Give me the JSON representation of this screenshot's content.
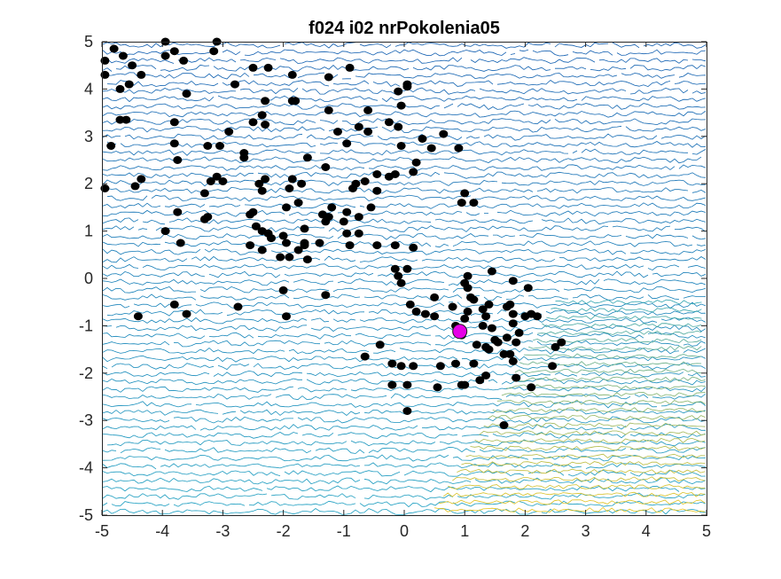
{
  "chart_data": {
    "type": "scatter",
    "title": "f024 i02 nrPokolenia05",
    "xlabel": "",
    "ylabel": "",
    "xlim": [
      -5,
      5
    ],
    "ylim": [
      -5,
      5
    ],
    "x_ticks": [
      -5,
      -4,
      -3,
      -2,
      -1,
      0,
      1,
      2,
      3,
      4,
      5
    ],
    "y_ticks": [
      -5,
      -4,
      -3,
      -2,
      -1,
      0,
      1,
      2,
      3,
      4,
      5
    ],
    "x_tick_labels": [
      "-5",
      "-4",
      "-3",
      "-2",
      "-1",
      "0",
      "1",
      "2",
      "3",
      "4",
      "5"
    ],
    "y_tick_labels": [
      "-5",
      "-4",
      "-3",
      "-2",
      "-1",
      "0",
      "1",
      "2",
      "3",
      "4",
      "5"
    ],
    "grid": false,
    "background": "contour lines of objective function (parula colormap, low=blue, high=yellow toward bottom-right)",
    "colors": {
      "contour_low": "#0a3fa8",
      "contour_mid": "#1a9fc0",
      "contour_high": "#e6c21a",
      "population_marker": "#000000",
      "best_marker": "#e600e6"
    },
    "series": [
      {
        "marker": "filled-circle",
        "color": "#000000",
        "points": [
          [
            -4.95,
            4.6
          ],
          [
            -4.95,
            4.3
          ],
          [
            -4.8,
            4.85
          ],
          [
            -4.65,
            4.7
          ],
          [
            -4.5,
            4.5
          ],
          [
            -4.35,
            4.3
          ],
          [
            -4.55,
            4.1
          ],
          [
            -4.7,
            4.0
          ],
          [
            -4.6,
            3.35
          ],
          [
            -4.7,
            3.35
          ],
          [
            -4.85,
            2.8
          ],
          [
            -4.95,
            1.9
          ],
          [
            -4.45,
            1.95
          ],
          [
            -4.35,
            2.1
          ],
          [
            -3.95,
            5.0
          ],
          [
            -3.95,
            4.7
          ],
          [
            -3.8,
            4.8
          ],
          [
            -3.65,
            4.6
          ],
          [
            -3.6,
            3.9
          ],
          [
            -3.8,
            3.3
          ],
          [
            -3.8,
            2.85
          ],
          [
            -3.75,
            2.5
          ],
          [
            -3.15,
            4.8
          ],
          [
            -3.1,
            5.0
          ],
          [
            -2.8,
            4.1
          ],
          [
            -2.5,
            4.45
          ],
          [
            -2.25,
            4.45
          ],
          [
            -3.25,
            2.8
          ],
          [
            -3.05,
            2.8
          ],
          [
            -2.9,
            3.1
          ],
          [
            -2.65,
            2.55
          ],
          [
            -2.65,
            2.65
          ],
          [
            -2.3,
            3.75
          ],
          [
            -2.35,
            3.45
          ],
          [
            -2.5,
            3.3
          ],
          [
            -2.3,
            3.25
          ],
          [
            -1.85,
            3.75
          ],
          [
            -1.8,
            3.75
          ],
          [
            -1.85,
            4.3
          ],
          [
            -3.2,
            2.05
          ],
          [
            -3.1,
            2.15
          ],
          [
            -3.0,
            2.05
          ],
          [
            -3.3,
            1.8
          ],
          [
            -3.25,
            1.3
          ],
          [
            -3.3,
            1.25
          ],
          [
            -3.75,
            1.4
          ],
          [
            -3.95,
            1.0
          ],
          [
            -3.7,
            0.75
          ],
          [
            -2.55,
            1.35
          ],
          [
            -2.5,
            1.4
          ],
          [
            -2.4,
            2.0
          ],
          [
            -2.3,
            2.1
          ],
          [
            -2.35,
            1.85
          ],
          [
            -2.45,
            1.1
          ],
          [
            -2.35,
            1.0
          ],
          [
            -2.25,
            0.95
          ],
          [
            -2.55,
            0.7
          ],
          [
            -2.2,
            0.85
          ],
          [
            -2.35,
            0.6
          ],
          [
            -2.05,
            0.45
          ],
          [
            -1.95,
            0.75
          ],
          [
            -2.0,
            0.9
          ],
          [
            -1.9,
            0.45
          ],
          [
            -1.75,
            0.6
          ],
          [
            -1.65,
            0.75
          ],
          [
            -1.6,
            0.4
          ],
          [
            -1.95,
            1.5
          ],
          [
            -1.75,
            1.6
          ],
          [
            -1.9,
            1.9
          ],
          [
            -1.85,
            2.1
          ],
          [
            -1.7,
            2.0
          ],
          [
            -1.65,
            1.05
          ],
          [
            -1.65,
            0.7
          ],
          [
            -1.4,
            0.75
          ],
          [
            -1.3,
            1.2
          ],
          [
            -1.35,
            1.35
          ],
          [
            -1.25,
            1.3
          ],
          [
            -1.2,
            1.5
          ],
          [
            -0.95,
            1.4
          ],
          [
            -1.0,
            1.2
          ],
          [
            -0.95,
            0.95
          ],
          [
            -0.9,
            0.7
          ],
          [
            -0.75,
            0.95
          ],
          [
            -0.75,
            1.3
          ],
          [
            -0.85,
            1.9
          ],
          [
            -0.8,
            2.0
          ],
          [
            -0.65,
            2.05
          ],
          [
            -0.55,
            1.5
          ],
          [
            -0.45,
            1.85
          ],
          [
            -0.45,
            2.2
          ],
          [
            -0.45,
            0.7
          ],
          [
            -0.25,
            2.15
          ],
          [
            -0.15,
            2.2
          ],
          [
            -1.6,
            2.55
          ],
          [
            -1.25,
            3.55
          ],
          [
            -1.25,
            4.25
          ],
          [
            -1.1,
            3.1
          ],
          [
            -0.95,
            2.85
          ],
          [
            -0.75,
            3.2
          ],
          [
            -0.6,
            3.55
          ],
          [
            -0.9,
            4.45
          ],
          [
            -0.6,
            3.1
          ],
          [
            -0.25,
            3.3
          ],
          [
            -0.1,
            3.2
          ],
          [
            -0.05,
            3.65
          ],
          [
            -0.1,
            3.95
          ],
          [
            0.05,
            4.05
          ],
          [
            0.05,
            4.1
          ],
          [
            -0.05,
            2.8
          ],
          [
            0.2,
            2.45
          ],
          [
            0.15,
            2.25
          ],
          [
            0.3,
            2.95
          ],
          [
            0.45,
            2.75
          ],
          [
            0.65,
            3.05
          ],
          [
            0.9,
            2.75
          ],
          [
            0.95,
            1.6
          ],
          [
            1.0,
            1.8
          ],
          [
            1.15,
            1.6
          ],
          [
            -1.3,
            2.35
          ],
          [
            -0.15,
            0.7
          ],
          [
            -3.8,
            -0.55
          ],
          [
            -3.6,
            -0.75
          ],
          [
            -4.4,
            -0.8
          ],
          [
            -2.75,
            -0.6
          ],
          [
            -2.0,
            -0.25
          ],
          [
            -1.95,
            -0.8
          ],
          [
            -1.3,
            -0.35
          ],
          [
            -0.15,
            0.2
          ],
          [
            -0.1,
            0.05
          ],
          [
            0.05,
            0.2
          ],
          [
            0.15,
            0.65
          ],
          [
            0.1,
            -0.55
          ],
          [
            -0.05,
            -0.1
          ],
          [
            0.2,
            -0.7
          ],
          [
            0.35,
            -0.75
          ],
          [
            0.5,
            -0.8
          ],
          [
            0.5,
            -0.4
          ],
          [
            0.8,
            -0.6
          ],
          [
            0.85,
            -1.0
          ],
          [
            0.95,
            -1.2
          ],
          [
            1.0,
            -0.85
          ],
          [
            1.05,
            -0.7
          ],
          [
            1.05,
            -0.2
          ],
          [
            1.1,
            -0.4
          ],
          [
            1.05,
            0.05
          ],
          [
            1.0,
            -0.1
          ],
          [
            1.15,
            -0.45
          ],
          [
            1.3,
            -0.65
          ],
          [
            1.35,
            -0.8
          ],
          [
            1.4,
            -0.55
          ],
          [
            1.3,
            -1.0
          ],
          [
            1.45,
            -1.05
          ],
          [
            1.5,
            -1.3
          ],
          [
            1.2,
            -1.4
          ],
          [
            1.35,
            -1.45
          ],
          [
            1.4,
            -1.5
          ],
          [
            1.55,
            -1.35
          ],
          [
            1.7,
            -1.25
          ],
          [
            1.85,
            -1.35
          ],
          [
            1.75,
            -0.55
          ],
          [
            1.7,
            -0.6
          ],
          [
            1.8,
            -0.75
          ],
          [
            1.8,
            -0.95
          ],
          [
            1.9,
            -1.15
          ],
          [
            2.0,
            -0.8
          ],
          [
            2.1,
            -0.75
          ],
          [
            2.2,
            -0.8
          ],
          [
            2.05,
            -0.2
          ],
          [
            1.8,
            -0.05
          ],
          [
            1.45,
            0.15
          ],
          [
            0.95,
            -2.25
          ],
          [
            1.0,
            -2.25
          ],
          [
            0.55,
            -2.3
          ],
          [
            0.6,
            -1.85
          ],
          [
            0.85,
            -1.8
          ],
          [
            1.25,
            -2.15
          ],
          [
            1.35,
            -2.05
          ],
          [
            1.65,
            -1.6
          ],
          [
            1.75,
            -1.6
          ],
          [
            1.8,
            -1.75
          ],
          [
            1.85,
            -2.1
          ],
          [
            2.1,
            -2.3
          ],
          [
            2.45,
            -1.85
          ],
          [
            2.5,
            -1.45
          ],
          [
            2.6,
            -1.35
          ],
          [
            -0.2,
            -1.8
          ],
          [
            -0.05,
            -1.85
          ],
          [
            0.15,
            -1.85
          ],
          [
            -0.2,
            -2.25
          ],
          [
            0.05,
            -2.25
          ],
          [
            -0.4,
            -1.4
          ],
          [
            -0.65,
            -1.65
          ],
          [
            1.65,
            -3.1
          ],
          [
            0.05,
            -2.8
          ],
          [
            1.15,
            -1.8
          ]
        ]
      },
      {
        "name": "best",
        "marker": "filled-circle",
        "color": "#e600e6",
        "points": [
          [
            0.92,
            -1.12
          ]
        ]
      }
    ]
  }
}
